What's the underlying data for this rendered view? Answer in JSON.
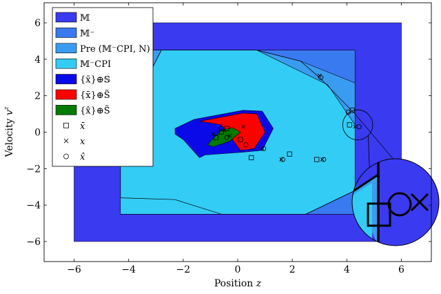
{
  "chart_data": {
    "type": "area",
    "xlabel": "Position z",
    "ylabel": "Velocity v^z",
    "xlim": [
      -7.1,
      7.1
    ],
    "ylim": [
      -7.1,
      7.1
    ],
    "xticks": [
      -6,
      -4,
      -2,
      0,
      2,
      4,
      6
    ],
    "yticks": [
      -6,
      -4,
      -2,
      0,
      2,
      4,
      6
    ],
    "xtick_labels": [
      "−6",
      "−4",
      "−2",
      "0",
      "2",
      "4",
      "6"
    ],
    "ytick_labels": [
      "−6",
      "−4",
      "−2",
      "0",
      "2",
      "4",
      "6"
    ],
    "grid": false,
    "legend_position": "top-left",
    "regions": [
      {
        "key": "M",
        "color": "#3a3af0",
        "polygon": [
          [
            -6,
            -6
          ],
          [
            6,
            -6
          ],
          [
            6,
            6
          ],
          [
            -6,
            6
          ]
        ]
      },
      {
        "key": "Mminus",
        "color": "#3a7af0",
        "polygon": [
          [
            -4.3,
            -4.5
          ],
          [
            4.3,
            -4.5
          ],
          [
            4.3,
            4.5
          ],
          [
            -4.3,
            4.5
          ]
        ]
      },
      {
        "key": "pre",
        "color": "#3a9cf0",
        "polygon": [
          [
            -4.3,
            -1.1
          ],
          [
            -4.3,
            -3.6
          ],
          [
            -2.3,
            -3.7
          ],
          [
            -0.6,
            -4.5
          ],
          [
            2.5,
            -4.5
          ],
          [
            4.3,
            -3.2
          ],
          [
            4.3,
            -0.7
          ],
          [
            4.3,
            2.7
          ],
          [
            2.3,
            3.9
          ],
          [
            0.7,
            4.5
          ],
          [
            -2.8,
            4.5
          ],
          [
            -3.8,
            4.5
          ]
        ]
      },
      {
        "key": "cpi",
        "color": "#33ccf5",
        "polygon": [
          [
            -4.3,
            0.1
          ],
          [
            -4.3,
            -4.5
          ],
          [
            2.5,
            -4.5
          ],
          [
            4.3,
            -3.2
          ],
          [
            4.3,
            0.4
          ],
          [
            3.3,
            2.6
          ],
          [
            0.7,
            4.5
          ],
          [
            -2.8,
            4.5
          ]
        ]
      },
      {
        "key": "set_bar_S",
        "color": "#0a0ae8",
        "polygon": [
          [
            -2.3,
            0.2
          ],
          [
            -1.6,
            0.7
          ],
          [
            0.2,
            1.2
          ],
          [
            0.9,
            1.15
          ],
          [
            1.3,
            0.2
          ],
          [
            0.9,
            -1.0
          ],
          [
            0.2,
            -1.1
          ],
          [
            -1.2,
            -1.25
          ],
          [
            -1.4,
            -1.4
          ],
          [
            -2.0,
            -0.4
          ],
          [
            -2.3,
            -0.1
          ]
        ]
      },
      {
        "key": "set_bar_S_tilde",
        "color": "#ff0000",
        "polygon": [
          [
            -1.4,
            0.6
          ],
          [
            0.2,
            1.05
          ],
          [
            0.7,
            1.0
          ],
          [
            1.0,
            0.0
          ],
          [
            0.6,
            -0.9
          ],
          [
            0.1,
            -1.0
          ],
          [
            -0.6,
            0.4
          ]
        ]
      },
      {
        "key": "set_hat_S_tilde",
        "color": "#007a00",
        "polygon": [
          [
            -1.0,
            -0.5
          ],
          [
            -0.6,
            0.1
          ],
          [
            -0.2,
            0.25
          ],
          [
            0.1,
            0.0
          ],
          [
            -0.3,
            -0.5
          ],
          [
            -0.9,
            -0.8
          ],
          [
            -1.1,
            -0.7
          ]
        ]
      }
    ],
    "boundary_lines": [
      {
        "points": [
          [
            -4.3,
            -1.1
          ],
          [
            -4.3,
            -3.6
          ],
          [
            -2.3,
            -3.7
          ],
          [
            -0.6,
            -4.5
          ]
        ]
      },
      {
        "points": [
          [
            2.5,
            -4.5
          ],
          [
            4.3,
            -3.2
          ]
        ]
      },
      {
        "points": [
          [
            -4.3,
            0.1
          ],
          [
            -2.8,
            4.5
          ]
        ]
      },
      {
        "points": [
          [
            0.7,
            4.5
          ],
          [
            2.3,
            3.9
          ],
          [
            3.0,
            3.0
          ],
          [
            4.3,
            1.0
          ],
          [
            6.0,
            -2.0
          ]
        ]
      },
      {
        "points": [
          [
            -2.8,
            4.5
          ],
          [
            0.7,
            4.5
          ]
        ]
      }
    ],
    "markers": {
      "x_bar": [
        [
          4.2,
          1.2
        ],
        [
          4.1,
          0.4
        ],
        [
          1.9,
          -1.2
        ],
        [
          2.9,
          -1.5
        ],
        [
          0.5,
          -1.4
        ],
        [
          -0.6,
          0.0
        ],
        [
          -0.8,
          -0.3
        ],
        [
          -0.4,
          0.2
        ],
        [
          0.1,
          -0.4
        ]
      ],
      "x": [
        [
          3.0,
          3.1
        ],
        [
          4.3,
          0.3
        ],
        [
          1.6,
          -1.5
        ],
        [
          3.1,
          -1.5
        ],
        [
          0.9,
          -0.9
        ],
        [
          -0.5,
          0.1
        ],
        [
          -0.3,
          -0.2
        ],
        [
          0.2,
          0.3
        ],
        [
          -0.9,
          -0.1
        ]
      ],
      "x_hat": [
        [
          3.05,
          3.0
        ],
        [
          4.05,
          1.1
        ],
        [
          4.45,
          0.3
        ],
        [
          1.65,
          -1.5
        ],
        [
          3.15,
          -1.5
        ],
        [
          0.95,
          -0.9
        ],
        [
          0.3,
          -0.7
        ],
        [
          -0.4,
          -0.3
        ],
        [
          -0.6,
          0.2
        ]
      ]
    },
    "zoom_circle": {
      "center": [
        4.4,
        0.4
      ],
      "radius": 0.55
    },
    "legend": [
      {
        "key": "M",
        "label": "𝕄",
        "kind": "patch",
        "color": "#3a3af0"
      },
      {
        "key": "Mminus",
        "label": "𝕄⁻",
        "kind": "patch",
        "color": "#3a7af0"
      },
      {
        "key": "pre",
        "label": "Pre (𝕄⁻CPI, N)",
        "kind": "patch",
        "color": "#3a9cf0"
      },
      {
        "key": "cpi",
        "label": "𝕄⁻CPI",
        "kind": "patch",
        "color": "#33ccf5"
      },
      {
        "key": "set_bar_S",
        "label": "{x̄}⊕𝕊",
        "kind": "patch",
        "color": "#0a0ae8"
      },
      {
        "key": "set_bar_S_tilde",
        "label": "{x̄}⊕S̃",
        "kind": "patch",
        "color": "#ff0000"
      },
      {
        "key": "set_hat_S_tilde",
        "label": "{x̂}⊕S̃",
        "kind": "patch",
        "color": "#007a00"
      },
      {
        "key": "x_bar",
        "label": "x̄",
        "kind": "square"
      },
      {
        "key": "x",
        "label": "x",
        "kind": "cross"
      },
      {
        "key": "x_hat",
        "label": "x̂",
        "kind": "circle"
      }
    ]
  }
}
